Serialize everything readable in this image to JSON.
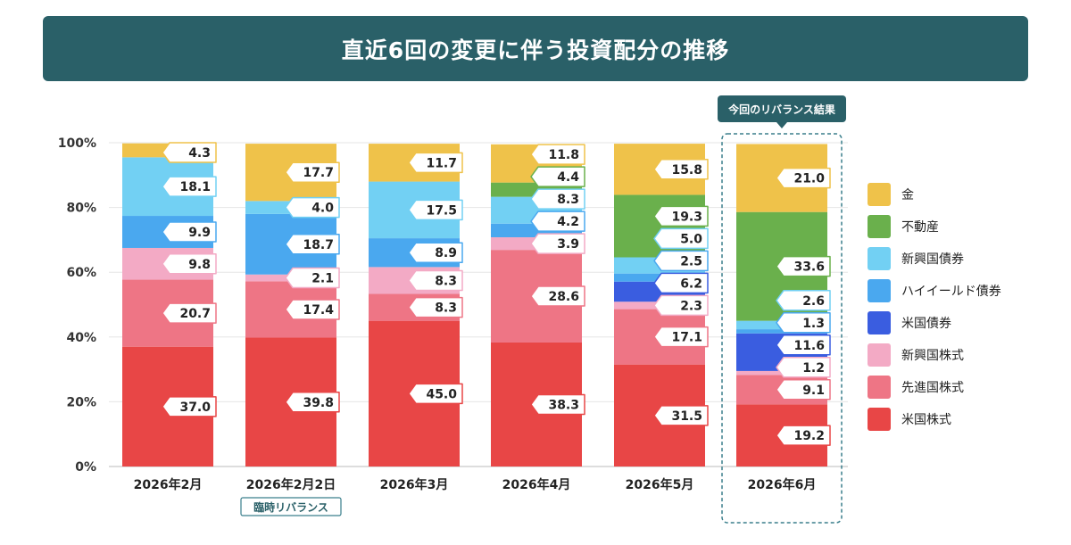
{
  "title": "直近6回の変更に伴う投資配分の推移",
  "callout": "今回のリバランス結果",
  "special_badge": "臨時リバランス",
  "colors": {
    "header_bg": "#2a6068",
    "gold": "#efc24a",
    "real_estate": "#6ab04c",
    "em_bonds": "#72d0f3",
    "high_yield": "#4aa8ef",
    "us_bonds": "#3a5de0",
    "em_stocks": "#f3aac5",
    "dev_stocks": "#ee7585",
    "us_stocks": "#e84646"
  },
  "chart_data": {
    "type": "bar",
    "stacked": true,
    "categories": [
      "2026年2月",
      "2026年2月2日",
      "2026年3月",
      "2026年4月",
      "2026年5月",
      "2026年6月"
    ],
    "y_ticks": [
      "0%",
      "20%",
      "40%",
      "60%",
      "80%",
      "100%"
    ],
    "ylim": [
      0,
      100
    ],
    "grid": true,
    "legend_position": "right",
    "series": [
      {
        "name": "米国株式",
        "color": "#e84646",
        "values": [
          37.0,
          39.8,
          45.0,
          38.3,
          31.5,
          19.2
        ]
      },
      {
        "name": "先進国株式",
        "color": "#ee7585",
        "values": [
          20.7,
          17.4,
          8.3,
          28.6,
          17.1,
          9.1
        ]
      },
      {
        "name": "新興国株式",
        "color": "#f3aac5",
        "values": [
          9.8,
          2.1,
          8.3,
          3.9,
          2.3,
          1.2
        ]
      },
      {
        "name": "米国債券",
        "color": "#3a5de0",
        "values": [
          0,
          0,
          0,
          0,
          6.2,
          11.6
        ]
      },
      {
        "name": "ハイイールド債券",
        "color": "#4aa8ef",
        "values": [
          9.9,
          18.7,
          8.9,
          4.2,
          2.5,
          1.3
        ]
      },
      {
        "name": "新興国債券",
        "color": "#72d0f3",
        "values": [
          18.1,
          4.0,
          17.5,
          8.3,
          5.0,
          2.6
        ]
      },
      {
        "name": "不動産",
        "color": "#6ab04c",
        "values": [
          0,
          0,
          0,
          4.4,
          19.3,
          33.6
        ]
      },
      {
        "name": "金",
        "color": "#efc24a",
        "values": [
          4.3,
          17.7,
          11.7,
          11.8,
          15.8,
          21.0
        ]
      }
    ],
    "legend_order": [
      "金",
      "不動産",
      "新興国債券",
      "ハイイールド債券",
      "米国債券",
      "新興国株式",
      "先進国株式",
      "米国株式"
    ]
  }
}
